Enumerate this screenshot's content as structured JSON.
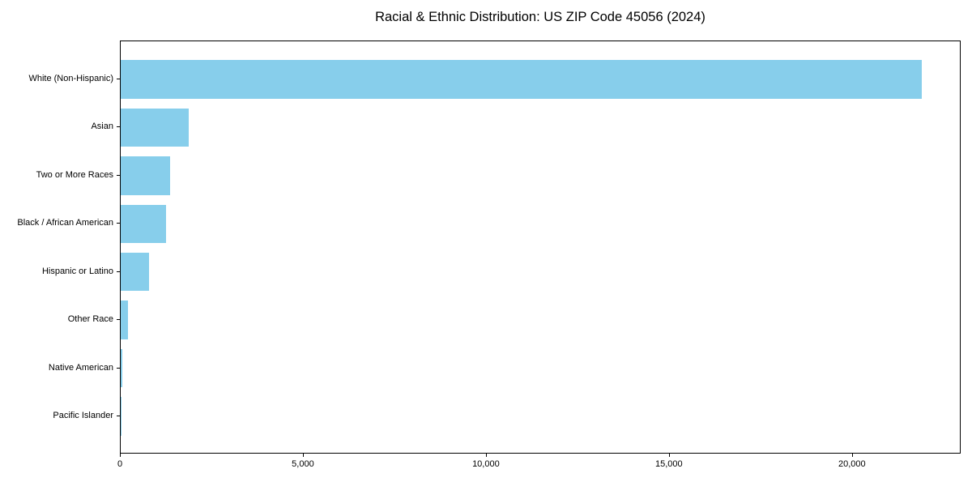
{
  "chart_data": {
    "type": "bar",
    "orientation": "horizontal",
    "title": "Racial & Ethnic Distribution: US ZIP Code 45056 (2024)",
    "categories": [
      "White (Non-Hispanic)",
      "Asian",
      "Two or More Races",
      "Black / African American",
      "Hispanic or Latino",
      "Other Race",
      "Native American",
      "Pacific Islander"
    ],
    "values": [
      21880,
      1860,
      1340,
      1250,
      785,
      200,
      45,
      5
    ],
    "xlabel": "",
    "ylabel": "",
    "xlim": [
      0,
      22970
    ],
    "x_tick_values": [
      0,
      5000,
      10000,
      15000,
      20000
    ],
    "x_tick_labels": [
      "0",
      "5,000",
      "10,000",
      "15,000",
      "20,000"
    ],
    "bar_color": "#87CEEB",
    "background_color": "#ffffff",
    "axis_color": "#000000",
    "grid": false,
    "legend": null
  }
}
